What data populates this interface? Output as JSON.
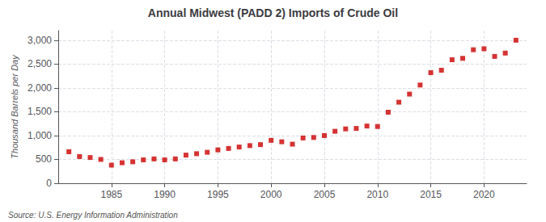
{
  "chart_data": {
    "type": "scatter",
    "title": "Annual Midwest (PADD 2) Imports of Crude Oil",
    "ylabel": "Thousand Barrels per Day",
    "source": "Source: U.S. Energy Information Administration",
    "x": [
      1981,
      1982,
      1983,
      1984,
      1985,
      1986,
      1987,
      1988,
      1989,
      1990,
      1991,
      1992,
      1993,
      1994,
      1995,
      1996,
      1997,
      1998,
      1999,
      2000,
      2001,
      2002,
      2003,
      2004,
      2005,
      2006,
      2007,
      2008,
      2009,
      2010,
      2011,
      2012,
      2013,
      2014,
      2015,
      2016,
      2017,
      2018,
      2019,
      2020,
      2021,
      2022,
      2023
    ],
    "values": [
      660,
      560,
      540,
      500,
      380,
      430,
      450,
      490,
      510,
      490,
      510,
      590,
      620,
      650,
      700,
      730,
      760,
      790,
      810,
      900,
      870,
      820,
      950,
      960,
      1000,
      1090,
      1140,
      1150,
      1200,
      1190,
      1490,
      1700,
      1870,
      2060,
      2320,
      2370,
      2590,
      2620,
      2800,
      2820,
      2660,
      2730,
      3000
    ],
    "color": "#cc0000",
    "marker": "square",
    "xlim": [
      1980,
      2024
    ],
    "xticks": [
      1985,
      1990,
      1995,
      2000,
      2005,
      2010,
      2015,
      2020
    ],
    "ylim": [
      0,
      3200
    ],
    "yticks": [
      0,
      500,
      {
        "value": 1000,
        "label": "1,000"
      },
      {
        "value": 1500,
        "label": "1,500"
      },
      {
        "value": 2000,
        "label": "2,000"
      },
      {
        "value": 2500,
        "label": "2,500"
      },
      {
        "value": 3000,
        "label": "3,000"
      }
    ],
    "grid": true
  }
}
